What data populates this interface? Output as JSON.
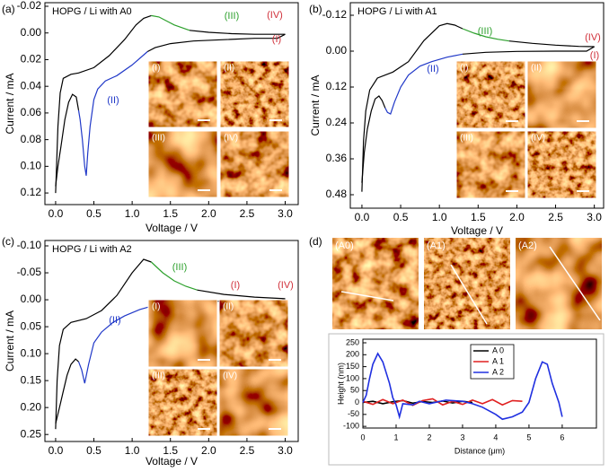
{
  "chart_data": [
    {
      "type": "line",
      "panel_label": "(a)",
      "title": "HOPG / Li  with A0",
      "x_label": "Voltage / V",
      "y_label": "Current / mA",
      "y_inverted": true,
      "xlim": [
        -0.14,
        3.17
      ],
      "ylim": [
        -0.0227,
        0.1287
      ],
      "xticks": [
        {
          "value": 0,
          "label": "0.0"
        },
        0.5,
        {
          "value": 1,
          "label": "1.0"
        },
        1.5,
        {
          "value": 2,
          "label": "2.0"
        },
        2.5,
        {
          "value": 3,
          "label": "3.0"
        }
      ],
      "yticks": [
        -0.02,
        {
          "value": 0,
          "label": "0.00"
        },
        0.02,
        0.04,
        0.06,
        0.08,
        {
          "value": 0.1,
          "label": "0.10"
        },
        0.12
      ],
      "annotations": [
        {
          "text": "(III)",
          "color": "#2ca02c"
        },
        {
          "text": "(IV)",
          "color": "#d0303a"
        },
        {
          "text": "(I)",
          "color": "#d0303a"
        },
        {
          "text": "(II)",
          "color": "#2038c8"
        }
      ],
      "inset_labels": [
        "(I)",
        "(II)",
        "(III)",
        "(IV)"
      ],
      "series": [
        {
          "color": "#000000",
          "x": [
            0,
            0.03,
            0.06,
            0.1,
            0.2,
            0.3,
            0.5,
            0.7,
            0.9,
            1.05,
            1.15,
            1.25
          ],
          "values": [
            0.12,
            0.07,
            0.045,
            0.034,
            0.031,
            0.03,
            0.026,
            0.017,
            0.005,
            -0.006,
            -0.011,
            -0.013
          ]
        },
        {
          "color": "#2ca02c",
          "x": [
            1.25,
            1.35,
            1.45,
            1.55,
            1.65,
            1.75
          ],
          "values": [
            -0.013,
            -0.012,
            -0.009,
            -0.006,
            -0.004,
            -0.002
          ]
        },
        {
          "color": "#000000",
          "x": [
            1.75,
            2,
            2.3,
            2.6,
            3
          ],
          "values": [
            -0.002,
            -0.0005,
            0.0005,
            0.001,
            0.001
          ]
        },
        {
          "color": "#000000",
          "x": [
            3,
            2.9,
            2.6,
            2.2,
            1.8,
            1.5,
            1.3,
            1.2
          ],
          "values": [
            0.001,
            0.004,
            0.004,
            0.005,
            0.006,
            0.008,
            0.011,
            0.014
          ]
        },
        {
          "color": "#2038c8",
          "x": [
            1.2,
            1,
            0.8,
            0.65,
            0.55,
            0.5,
            0.45,
            0.42,
            0.4,
            0.38,
            0.35,
            0.32,
            0.3
          ],
          "values": [
            0.014,
            0.024,
            0.032,
            0.036,
            0.042,
            0.05,
            0.07,
            0.09,
            0.107,
            0.1,
            0.08,
            0.065,
            0.058
          ]
        },
        {
          "color": "#000000",
          "x": [
            0.3,
            0.27,
            0.22,
            0.17,
            0.12,
            0.07,
            0.03,
            0
          ],
          "values": [
            0.058,
            0.048,
            0.046,
            0.052,
            0.065,
            0.085,
            0.1,
            0.115
          ]
        }
      ]
    },
    {
      "type": "line",
      "panel_label": "(b)",
      "title": "HOPG / Li  with A1",
      "x_label": "Voltage / V",
      "y_label": "Current / mA",
      "y_inverted": true,
      "xlim": [
        -0.15,
        3.12
      ],
      "ylim": [
        -0.162,
        0.525
      ],
      "xticks": [
        {
          "value": 0,
          "label": "0.0"
        },
        0.5,
        {
          "value": 1,
          "label": "1.0"
        },
        1.5,
        {
          "value": 2,
          "label": "2.0"
        },
        2.5,
        {
          "value": 3,
          "label": "3.0"
        }
      ],
      "yticks": [
        -0.12,
        {
          "value": 0,
          "label": "0.00"
        },
        0.12,
        0.24,
        0.36,
        0.48
      ],
      "annotations": [
        {
          "text": "(III)",
          "color": "#2ca02c"
        },
        {
          "text": "(IV)",
          "color": "#d0303a"
        },
        {
          "text": "(I)",
          "color": "#d0303a"
        },
        {
          "text": "(II)",
          "color": "#2038c8"
        }
      ],
      "inset_labels": [
        "(I)",
        "(II)",
        "(III)",
        "(IV)"
      ],
      "series": [
        {
          "color": "#000000",
          "x": [
            0,
            0.02,
            0.05,
            0.1,
            0.2,
            0.4,
            0.6,
            0.8,
            1,
            1.1,
            1.2,
            1.3
          ],
          "values": [
            0.47,
            0.3,
            0.2,
            0.13,
            0.09,
            0.07,
            0.035,
            -0.035,
            -0.085,
            -0.092,
            -0.087,
            -0.075
          ]
        },
        {
          "color": "#2ca02c",
          "x": [
            1.3,
            1.45,
            1.6,
            1.75,
            1.9
          ],
          "values": [
            -0.075,
            -0.06,
            -0.048,
            -0.04,
            -0.034
          ]
        },
        {
          "color": "#000000",
          "x": [
            1.9,
            2.2,
            2.5,
            2.8,
            3
          ],
          "values": [
            -0.034,
            -0.026,
            -0.02,
            -0.016,
            -0.015
          ]
        },
        {
          "color": "#000000",
          "x": [
            3,
            2.9,
            2.5,
            2,
            1.6,
            1.3
          ],
          "values": [
            -0.015,
            0,
            0,
            0.001,
            0.004,
            0.01
          ]
        },
        {
          "color": "#2038c8",
          "x": [
            1.3,
            1.1,
            0.9,
            0.75,
            0.6,
            0.5,
            0.42,
            0.37,
            0.33,
            0.3
          ],
          "values": [
            0.01,
            0.02,
            0.035,
            0.05,
            0.08,
            0.12,
            0.17,
            0.21,
            0.205,
            0.19
          ]
        },
        {
          "color": "#000000",
          "x": [
            0.3,
            0.26,
            0.22,
            0.17,
            0.12,
            0.07,
            0.03,
            0
          ],
          "values": [
            0.19,
            0.165,
            0.15,
            0.16,
            0.2,
            0.26,
            0.34,
            0.44
          ]
        }
      ]
    },
    {
      "type": "line",
      "panel_label": "(c)",
      "title": "HOPG / Li  with A2",
      "x_label": "Voltage / V",
      "y_label": "Current / mA",
      "y_inverted": true,
      "xlim": [
        -0.14,
        3.17
      ],
      "ylim": [
        -0.11,
        0.263
      ],
      "xticks": [
        {
          "value": 0,
          "label": "0.0"
        },
        0.5,
        {
          "value": 1,
          "label": "1.0"
        },
        1.5,
        {
          "value": 2,
          "label": "2.0"
        },
        2.5,
        {
          "value": 3,
          "label": "3.0"
        }
      ],
      "yticks": [
        {
          "value": -0.1,
          "label": "-0.10"
        },
        -0.05,
        {
          "value": 0,
          "label": "0.00"
        },
        0.05,
        {
          "value": 0.1,
          "label": "0.10"
        },
        0.15,
        {
          "value": 0.2,
          "label": "0.20"
        },
        0.25
      ],
      "annotations": [
        {
          "text": "(III)",
          "color": "#2ca02c"
        },
        {
          "text": "(I)",
          "color": "#d0303a"
        },
        {
          "text": "(IV)",
          "color": "#d0303a"
        },
        {
          "text": "(II)",
          "color": "#2038c8"
        }
      ],
      "inset_labels": [
        "(I)",
        "(II)",
        "(III)",
        "(IV)"
      ],
      "series": [
        {
          "color": "#000000",
          "x": [
            0,
            0.02,
            0.05,
            0.1,
            0.2,
            0.4,
            0.6,
            0.8,
            1,
            1.15,
            1.25
          ],
          "values": [
            0.24,
            0.15,
            0.085,
            0.055,
            0.042,
            0.035,
            0.02,
            -0.008,
            -0.05,
            -0.075,
            -0.07
          ]
        },
        {
          "color": "#2ca02c",
          "x": [
            1.25,
            1.4,
            1.55,
            1.7,
            1.85
          ],
          "values": [
            -0.07,
            -0.05,
            -0.035,
            -0.025,
            -0.018
          ]
        },
        {
          "color": "#000000",
          "x": [
            1.85,
            2.2,
            2.6,
            3
          ],
          "values": [
            -0.018,
            -0.01,
            -0.005,
            -0.002
          ]
        },
        {
          "color": "#000000",
          "x": [
            3,
            2.9,
            2.5,
            2,
            1.6,
            1.3
          ],
          "values": [
            -0.002,
            0.002,
            0.002,
            0.003,
            0.005,
            0.01
          ]
        },
        {
          "color": "#2038c8",
          "x": [
            1.3,
            1.1,
            0.9,
            0.75,
            0.6,
            0.5,
            0.43,
            0.38,
            0.34,
            0.3
          ],
          "values": [
            0.01,
            0.018,
            0.03,
            0.042,
            0.06,
            0.08,
            0.12,
            0.155,
            0.13,
            0.115
          ]
        },
        {
          "color": "#000000",
          "x": [
            0.3,
            0.26,
            0.2,
            0.15,
            0.1,
            0.05,
            0
          ],
          "values": [
            0.115,
            0.11,
            0.12,
            0.14,
            0.17,
            0.2,
            0.23
          ]
        }
      ]
    },
    {
      "type": "line",
      "panel_label": "(d)",
      "x_label": "Distance (μm)",
      "y_label": "Height (nm)",
      "y_inverted": false,
      "legend": "upper right",
      "image_labels": [
        "(A0)",
        "(A1)",
        "(A2)"
      ],
      "xlim": [
        0,
        7.03
      ],
      "ylim": [
        -107,
        265
      ],
      "xticks": [
        0,
        1,
        2,
        3,
        4,
        5,
        6
      ],
      "yticks": [
        -100,
        -50,
        0,
        50,
        100,
        150,
        200,
        250
      ],
      "series": [
        {
          "name": "A 0",
          "color": "#000000",
          "x": [
            0,
            0.3,
            0.6,
            0.9,
            1.2,
            1.5,
            1.8,
            2.1,
            2.4,
            2.7,
            3,
            3.3
          ],
          "values": [
            0,
            5,
            -5,
            3,
            8,
            -3,
            4,
            0,
            6,
            -2,
            5,
            0
          ]
        },
        {
          "name": "A 1",
          "color": "#e02020",
          "x": [
            0,
            0.3,
            0.6,
            0.9,
            1.2,
            1.5,
            1.8,
            2.1,
            2.4,
            2.7,
            3,
            3.3,
            3.6,
            3.9,
            4.2,
            4.5,
            4.8
          ],
          "values": [
            5,
            -8,
            12,
            -5,
            10,
            -12,
            8,
            15,
            -10,
            5,
            -8,
            10,
            -5,
            12,
            -10,
            8,
            5
          ]
        },
        {
          "name": "A 2",
          "color": "#2030e0",
          "x": [
            0,
            0.1,
            0.2,
            0.3,
            0.45,
            0.6,
            0.8,
            0.9,
            1,
            1.1,
            1.2,
            1.5,
            1.7,
            2,
            2.5,
            3,
            3.3,
            3.6,
            4,
            4.2,
            4.5,
            4.8,
            5,
            5.2,
            5.4,
            5.55,
            5.7,
            5.9,
            6
          ],
          "values": [
            0,
            30,
            100,
            160,
            205,
            170,
            80,
            20,
            -10,
            -60,
            -5,
            -10,
            5,
            -5,
            10,
            5,
            -5,
            -20,
            -50,
            -70,
            -60,
            -40,
            0,
            100,
            170,
            160,
            80,
            0,
            -60
          ]
        }
      ]
    }
  ]
}
